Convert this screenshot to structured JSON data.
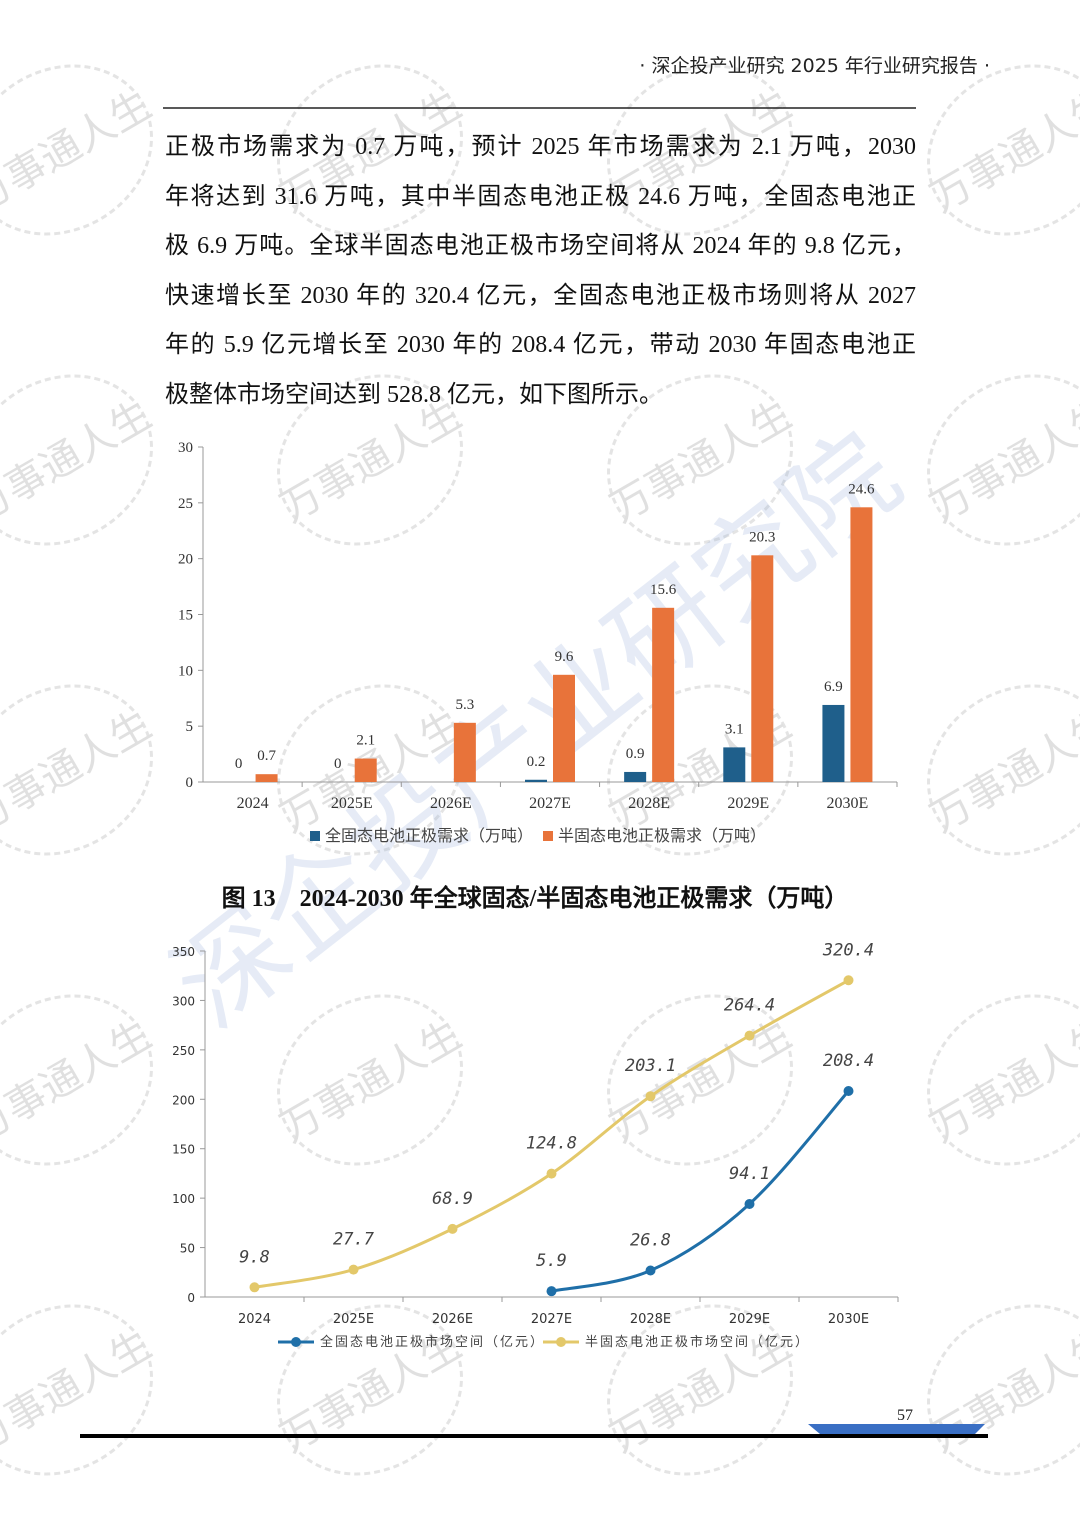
{
  "header": "· 深企投产业研究 2025 年行业研究报告 ·",
  "paragraph": [
    "正极市场需求为 0.7 万吨，预计 2025 年市场需求为 2.1 万吨，2030",
    "年将达到 31.6 万吨，其中半固态电池正极 24.6 万吨，全固态电池正",
    "极 6.9 万吨。全球半固态电池正极市场空间将从 2024 年的 9.8 亿元，",
    "快速增长至 2030 年的 320.4 亿元，全固态电池正极市场则将从 2027",
    "年的 5.9 亿元增长至 2030 年的 208.4 亿元，带动 2030 年固态电池正",
    "极整体市场空间达到 528.8 亿元，如下图所示。"
  ],
  "figure_caption": "图 13　2024-2030 年全球固态/半固态电池正极需求（万吨）",
  "page_number": "57",
  "watermarks": [
    "万事通人生",
    "深企投产业研究院"
  ],
  "chart_data": [
    {
      "type": "bar",
      "categories": [
        "2024",
        "2025E",
        "2026E",
        "2027E",
        "2028E",
        "2029E",
        "2030E"
      ],
      "series": [
        {
          "name": "全固态电池正极需求（万吨）",
          "color": "#1f5f8b",
          "values": [
            0,
            0,
            null,
            0.2,
            0.9,
            3.1,
            6.9
          ]
        },
        {
          "name": "半固态电池正极需求（万吨）",
          "color": "#e8733a",
          "values": [
            0.7,
            2.1,
            5.3,
            9.6,
            15.6,
            20.3,
            24.6
          ]
        }
      ],
      "ylim": [
        0,
        30
      ],
      "yticks": [
        0,
        5,
        10,
        15,
        20,
        25,
        30
      ],
      "grid": false
    },
    {
      "type": "line",
      "categories": [
        "2024",
        "2025E",
        "2026E",
        "2027E",
        "2028E",
        "2029E",
        "2030E"
      ],
      "series": [
        {
          "name": "全固态电池正极市场空间（亿元）",
          "color": "#1f6fa8",
          "values": [
            null,
            null,
            null,
            5.9,
            26.8,
            94.1,
            208.4
          ]
        },
        {
          "name": "半固态电池正极市场空间（亿元）",
          "color": "#e3c86a",
          "values": [
            9.8,
            27.7,
            68.9,
            124.8,
            203.1,
            264.4,
            320.4
          ]
        }
      ],
      "ylim": [
        0,
        350
      ],
      "yticks": [
        0,
        50,
        100,
        150,
        200,
        250,
        300,
        350
      ],
      "grid": false
    }
  ]
}
